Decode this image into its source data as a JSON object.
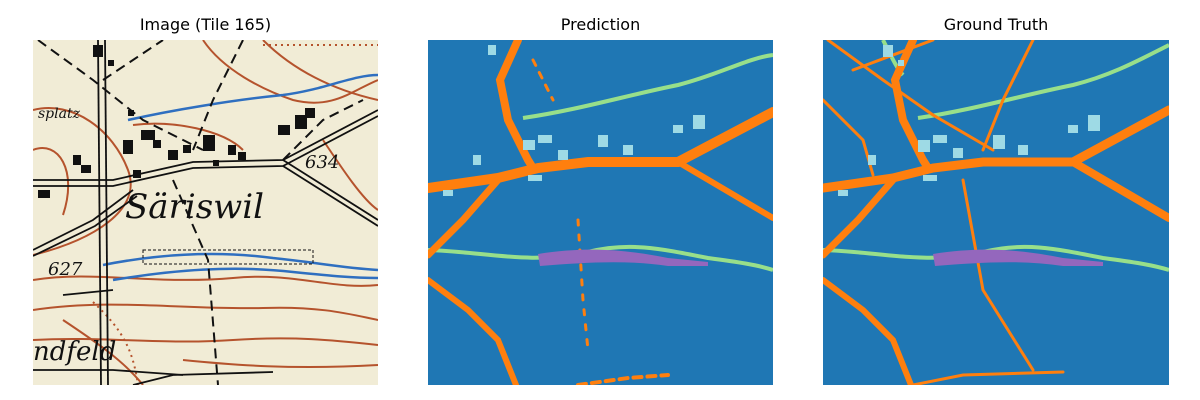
{
  "panels": [
    {
      "title": "Image (Tile 165)"
    },
    {
      "title": "Prediction"
    },
    {
      "title": "Ground Truth"
    }
  ],
  "map_labels": {
    "place": "Säriswil",
    "field": "ndfeld",
    "area_top": "splatz",
    "elev_1": "634",
    "elev_2": "627"
  },
  "colors": {
    "paper": "#f1ecd6",
    "background_class": "#1f77b4",
    "road_class": "#ff7f0e",
    "stream_class": "#98df8a",
    "building_class": "#9edae5",
    "wetland_class": "#9467bd",
    "contour": "#b5532d",
    "water": "#2f6fc0"
  }
}
